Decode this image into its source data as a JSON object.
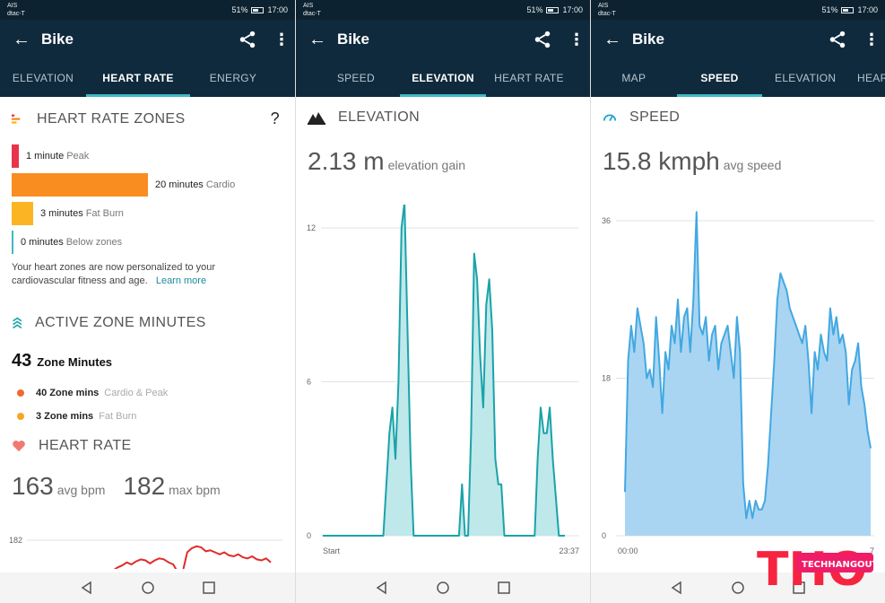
{
  "status": {
    "carrier1": "AIS",
    "carrier2": "dtac-T",
    "battery": "51%",
    "time": "17:00"
  },
  "screens": [
    {
      "title": "Bike",
      "tabs": [
        "ELEVATION",
        "HEART RATE",
        "ENERGY"
      ],
      "active_tab": 1,
      "hr_zones": {
        "title": "HEART RATE ZONES",
        "help": "?",
        "zones": [
          {
            "value": "1 minute",
            "label": "Peak",
            "minutes": 1,
            "color": "#e8344b"
          },
          {
            "value": "20 minutes",
            "label": "Cardio",
            "minutes": 20,
            "color": "#f98d1f"
          },
          {
            "value": "3 minutes",
            "label": "Fat Burn",
            "minutes": 3,
            "color": "#fbb524"
          },
          {
            "value": "0 minutes",
            "label": "Below zones",
            "minutes": 0,
            "color": "#3fb9c3"
          }
        ],
        "note": "Your heart zones are now personalized to your cardiovascular fitness and age.",
        "learn_more": "Learn more"
      },
      "active_zone": {
        "title": "ACTIVE ZONE MINUTES",
        "total_value": "43",
        "total_label": "Zone Minutes",
        "items": [
          {
            "value": "40 Zone mins",
            "label": "Cardio & Peak",
            "color": "#f06a2f"
          },
          {
            "value": "3 Zone mins",
            "label": "Fat Burn",
            "color": "#f5a623"
          }
        ]
      },
      "heart_rate": {
        "title": "HEART RATE",
        "avg_value": "163",
        "avg_unit": "avg bpm",
        "max_value": "182",
        "max_unit": "max bpm",
        "axis_top": "182"
      }
    },
    {
      "title": "Bike",
      "tabs": [
        "SPEED",
        "ELEVATION",
        "HEART RATE"
      ],
      "active_tab": 1,
      "section_title": "ELEVATION",
      "big_value": "2.13 m",
      "big_unit": "elevation gain",
      "x_start": "Start",
      "x_end": "23:37"
    },
    {
      "title": "Bike",
      "tabs": [
        "MAP",
        "SPEED",
        "ELEVATION",
        "HEAR"
      ],
      "active_tab": 1,
      "section_title": "SPEED",
      "big_value": "15.8 kmph",
      "big_unit": "avg speed",
      "x_start": "00:00",
      "x_end": "7"
    }
  ],
  "watermark": {
    "logo": "THO",
    "text": "TECHHANGOUT"
  },
  "chart_data": [
    {
      "type": "area",
      "title": "ELEVATION",
      "ylim": [
        0,
        12
      ],
      "yticks": [
        0,
        6,
        12
      ],
      "x_labels": [
        "Start",
        "23:37"
      ],
      "x": [
        0,
        10,
        20,
        22,
        23,
        24,
        25,
        26,
        27,
        28,
        29,
        30,
        31,
        32,
        33,
        35,
        40,
        45,
        46,
        47,
        48,
        49,
        50,
        51,
        52,
        53,
        54,
        55,
        56,
        57,
        58,
        59,
        60,
        62,
        64,
        65,
        66,
        67,
        68,
        69,
        70,
        71,
        72,
        73,
        74,
        75,
        76,
        78,
        80
      ],
      "values": [
        0,
        0,
        0,
        4,
        5,
        3,
        6,
        12,
        13,
        8,
        3,
        0,
        0,
        0,
        0,
        0,
        0,
        0,
        2,
        0,
        0,
        4,
        11,
        10,
        7,
        5,
        9,
        10,
        8,
        3,
        2,
        2,
        0,
        0,
        0,
        0,
        0,
        0,
        0,
        0,
        0,
        3,
        5,
        4,
        4,
        5,
        3,
        0,
        0
      ],
      "colors": {
        "line": "#1aa3a9",
        "fill": "#bfe8ea"
      }
    },
    {
      "type": "area",
      "title": "SPEED",
      "ylim": [
        0,
        36
      ],
      "yticks": [
        0,
        18,
        36
      ],
      "x_labels": [
        "00:00",
        "7"
      ],
      "values": [
        5,
        20,
        24,
        21,
        26,
        24,
        22,
        18,
        19,
        17,
        25,
        20,
        14,
        21,
        19,
        24,
        22,
        27,
        21,
        25,
        26,
        21,
        27,
        37,
        24,
        23,
        25,
        20,
        23,
        24,
        19,
        22,
        23,
        24,
        21,
        18,
        25,
        21,
        6,
        2,
        4,
        2,
        4,
        3,
        3,
        4,
        8,
        14,
        20,
        27,
        30,
        29,
        28,
        26,
        25,
        24,
        23,
        22,
        24,
        20,
        14,
        21,
        19,
        23,
        21,
        20,
        26,
        23,
        25,
        22,
        23,
        21,
        15,
        19,
        20,
        22,
        17,
        15,
        12,
        10
      ],
      "colors": {
        "line": "#42a8e2",
        "fill": "#a9d5f2"
      }
    },
    {
      "type": "line",
      "title": "HEART RATE",
      "ylim": [
        150,
        182
      ],
      "yticks": [
        182
      ],
      "values": [
        150,
        150,
        150,
        150,
        150,
        152,
        155,
        157,
        160,
        158,
        161,
        163,
        162,
        159,
        162,
        164,
        163,
        160,
        158,
        150,
        150,
        170,
        174,
        176,
        175,
        171,
        172,
        170,
        168,
        170,
        167,
        166,
        168,
        165,
        164,
        166,
        163,
        162,
        164,
        160
      ],
      "colors": {
        "line": "#e12b2b"
      }
    }
  ]
}
